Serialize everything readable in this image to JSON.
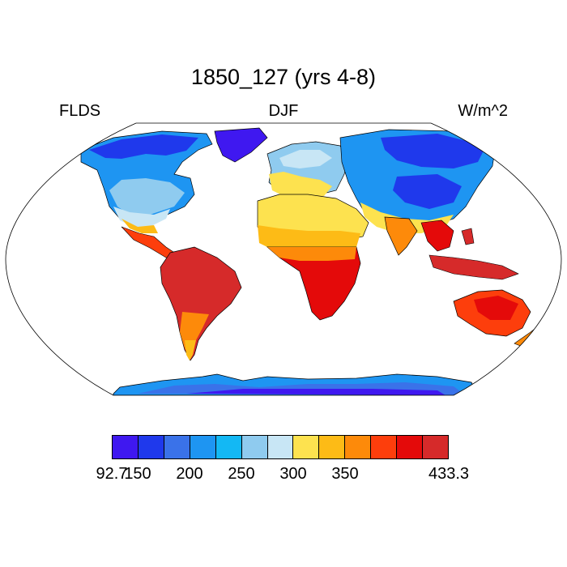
{
  "title": "1850_127 (yrs 4-8)",
  "left_label": "FLDS",
  "center_label": "DJF",
  "right_label": "W/m^2",
  "colorbar": {
    "colors": [
      "#3f18f0",
      "#1f39ec",
      "#3a72e9",
      "#1e95f2",
      "#13b8f4",
      "#8fcbef",
      "#c8e6f5",
      "#fde24f",
      "#fdbb16",
      "#fd8a0a",
      "#fd3e0c",
      "#e40a0a",
      "#d62a2a"
    ],
    "tick_labels": [
      "92.7",
      "150",
      "200",
      "250",
      "300",
      "350",
      "433.3"
    ]
  },
  "map": {
    "projection": "Robinson",
    "variable": "downwelling longwave flux at surface",
    "ocean_fill": "#ffffff",
    "regions": [
      {
        "name": "north-america",
        "level": 3
      },
      {
        "name": "greenland",
        "level": 0
      },
      {
        "name": "central-america",
        "level": 10
      },
      {
        "name": "south-america",
        "level": 12
      },
      {
        "name": "europe",
        "level": 7
      },
      {
        "name": "north-africa",
        "level": 8
      },
      {
        "name": "central-africa",
        "level": 11
      },
      {
        "name": "asia",
        "level": 2
      },
      {
        "name": "india",
        "level": 9
      },
      {
        "name": "southeast-asia",
        "level": 11
      },
      {
        "name": "australia",
        "level": 10
      },
      {
        "name": "antarctica",
        "level": 1
      }
    ]
  }
}
